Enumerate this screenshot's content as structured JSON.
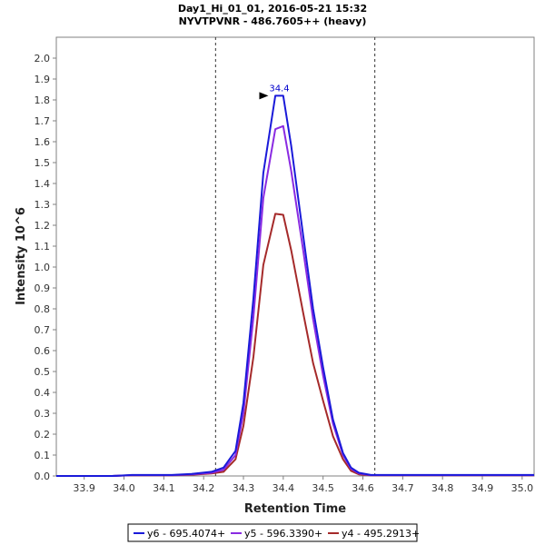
{
  "chart_data": {
    "type": "line",
    "title": "Day1_Hi_01_01, 2016-05-21 15:32",
    "subtitle": "NYVTPVNR - 486.7605++ (heavy)",
    "xlabel": "Retention Time",
    "ylabel": "Intensity 10^6",
    "xlim": [
      33.83,
      35.03
    ],
    "ylim": [
      0,
      2.1
    ],
    "xticks": [
      "33.9",
      "34.0",
      "34.1",
      "34.2",
      "34.3",
      "34.4",
      "34.5",
      "34.6",
      "34.7",
      "34.8",
      "34.9",
      "35.0"
    ],
    "yticks": [
      "0.0",
      "0.1",
      "0.2",
      "0.3",
      "0.4",
      "0.5",
      "0.6",
      "0.7",
      "0.8",
      "0.9",
      "1.0",
      "1.1",
      "1.2",
      "1.3",
      "1.4",
      "1.5",
      "1.6",
      "1.7",
      "1.8",
      "1.9",
      "2.0"
    ],
    "integration_bounds": [
      34.23,
      34.63
    ],
    "peak_annotation": {
      "label": "34.4",
      "x": 34.39,
      "y": 1.82,
      "color": "#0000cc"
    },
    "series": [
      {
        "name": "y6 - 695.4074+",
        "color": "#1a1ad9",
        "x": [
          33.83,
          33.93,
          33.97,
          34.02,
          34.07,
          34.12,
          34.17,
          34.22,
          34.25,
          34.28,
          34.3,
          34.325,
          34.35,
          34.38,
          34.4,
          34.42,
          34.45,
          34.475,
          34.5,
          34.525,
          34.55,
          34.57,
          34.59,
          34.62,
          34.66,
          35.03
        ],
        "y": [
          0.0,
          0.0,
          0.0,
          0.005,
          0.005,
          0.005,
          0.01,
          0.02,
          0.04,
          0.12,
          0.35,
          0.85,
          1.45,
          1.82,
          1.82,
          1.58,
          1.15,
          0.8,
          0.52,
          0.27,
          0.11,
          0.04,
          0.015,
          0.005,
          0.005,
          0.005
        ]
      },
      {
        "name": "y5 - 596.3390+",
        "color": "#8a2be2",
        "x": [
          33.83,
          33.93,
          33.97,
          34.02,
          34.07,
          34.12,
          34.17,
          34.22,
          34.25,
          34.28,
          34.3,
          34.325,
          34.35,
          34.38,
          34.4,
          34.42,
          34.45,
          34.475,
          34.5,
          34.525,
          34.55,
          34.57,
          34.59,
          34.62,
          34.66,
          35.03
        ],
        "y": [
          0.0,
          0.0,
          0.0,
          0.004,
          0.004,
          0.004,
          0.008,
          0.015,
          0.03,
          0.1,
          0.3,
          0.76,
          1.33,
          1.66,
          1.675,
          1.46,
          1.08,
          0.75,
          0.48,
          0.25,
          0.1,
          0.035,
          0.012,
          0.004,
          0.004,
          0.004
        ]
      },
      {
        "name": "y4 - 495.2913+",
        "color": "#a52a2a",
        "x": [
          33.83,
          33.93,
          33.97,
          34.02,
          34.07,
          34.12,
          34.17,
          34.22,
          34.25,
          34.28,
          34.3,
          34.325,
          34.35,
          34.38,
          34.4,
          34.42,
          34.45,
          34.475,
          34.5,
          34.525,
          34.55,
          34.57,
          34.59,
          34.62,
          34.66,
          35.03
        ],
        "y": [
          0.0,
          0.0,
          0.0,
          0.003,
          0.003,
          0.003,
          0.006,
          0.012,
          0.02,
          0.08,
          0.24,
          0.57,
          1.01,
          1.255,
          1.25,
          1.08,
          0.78,
          0.54,
          0.36,
          0.19,
          0.08,
          0.025,
          0.008,
          0.003,
          0.003,
          0.003
        ]
      }
    ]
  }
}
